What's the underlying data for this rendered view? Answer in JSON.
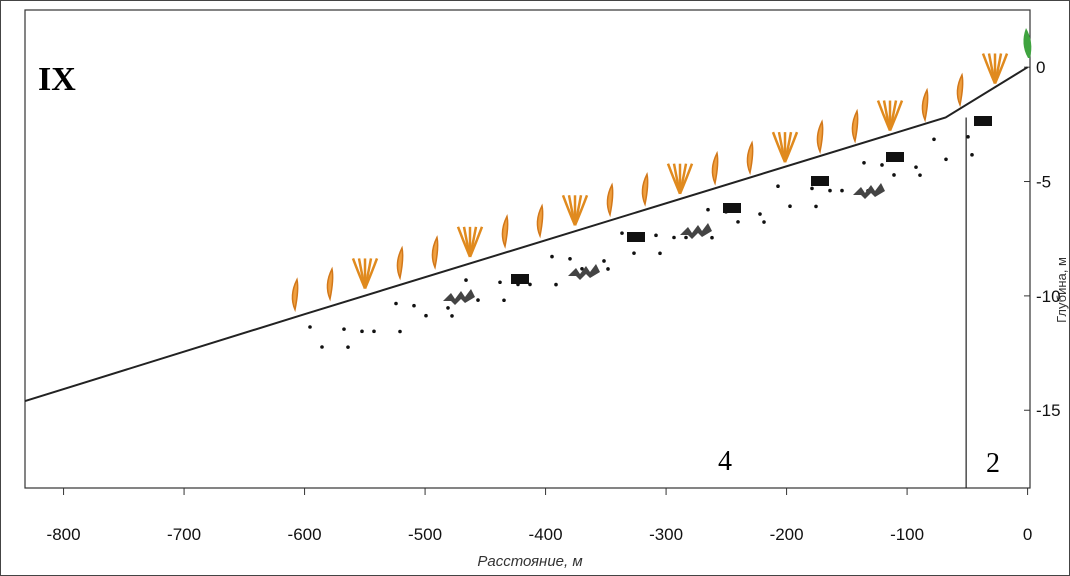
{
  "chart_data": {
    "type": "line",
    "title": "IX",
    "x_label": "Расстояние, м",
    "y_label": "Глубина, м",
    "x": [
      -832,
      -600,
      -68,
      0
    ],
    "values": [
      -14.6,
      -10.8,
      -2.2,
      0
    ],
    "color": "#222222",
    "xlim": [
      -832,
      2
    ],
    "xticks": [
      -800,
      -700,
      -600,
      -500,
      -400,
      -300,
      -200,
      -100,
      0
    ],
    "ylim": [
      -18.4,
      2.5
    ],
    "yticks": [
      0,
      -5,
      -10,
      -15
    ],
    "zone_boundary": -51,
    "zone_labels": [
      "4",
      "2"
    ]
  }
}
